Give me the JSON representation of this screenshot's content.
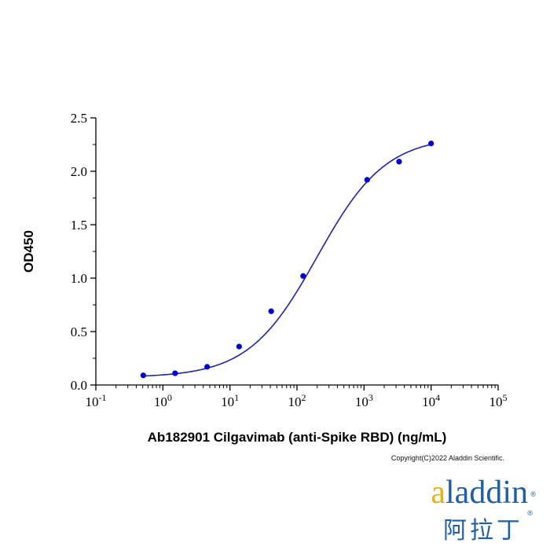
{
  "chart_data": {
    "type": "line",
    "title": "",
    "xlabel": "Ab182901 Cilgavimab (anti-Spike RBD) (ng/mL)",
    "ylabel": "OD450",
    "xscale": "log10",
    "xlim_exp": [
      -1,
      5
    ],
    "x_tick_labels": [
      {
        "base": "10",
        "exp": "-1"
      },
      {
        "base": "10",
        "exp": "0"
      },
      {
        "base": "10",
        "exp": "1"
      },
      {
        "base": "10",
        "exp": "2"
      },
      {
        "base": "10",
        "exp": "3"
      },
      {
        "base": "10",
        "exp": "4"
      },
      {
        "base": "10",
        "exp": "5"
      }
    ],
    "ylim": [
      0,
      2.5
    ],
    "y_ticks": [
      "0.0",
      "0.5",
      "1.0",
      "1.5",
      "2.0",
      "2.5"
    ],
    "series": [
      {
        "name": "Ab182901 Cilgavimab",
        "color": "#0000cc",
        "x": [
          0.51,
          1.52,
          4.57,
          13.7,
          41.2,
          123.5,
          1111,
          3333,
          10000
        ],
        "y": [
          0.09,
          0.11,
          0.17,
          0.36,
          0.69,
          1.02,
          1.92,
          2.09,
          2.26
        ]
      }
    ],
    "fit": {
      "type": "4PL",
      "bottom": 0.07,
      "top": 2.33,
      "ec50": 200,
      "hill": 0.85,
      "x_range": [
        0.5,
        10000
      ],
      "color": "#2222aa"
    }
  },
  "footer": {
    "copyright": "Copyright(C)2022 Aladdin Scientific."
  },
  "logo": {
    "text_accent": "a",
    "text_main": "laddin",
    "reg_mark": "®",
    "chinese": "阿拉丁",
    "chinese_reg": "®",
    "accent_color": "#e4b21d",
    "main_color": "#1f5ea8"
  }
}
